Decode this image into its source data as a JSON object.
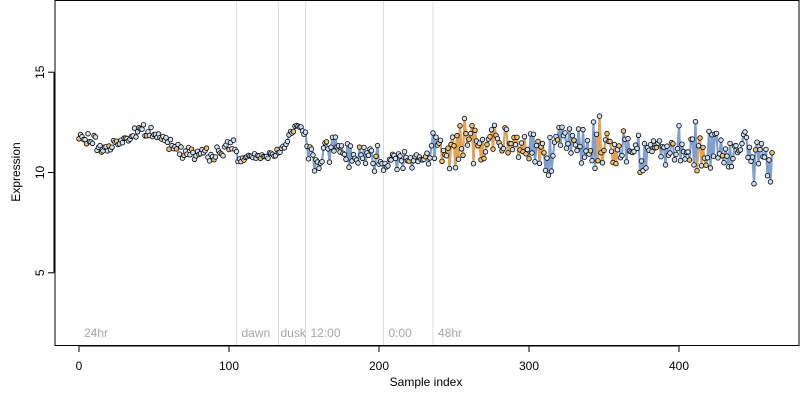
{
  "chart_data": {
    "type": "scatter",
    "xlabel": "Sample index",
    "ylabel": "Expression",
    "xlim": [
      -16,
      480
    ],
    "ylim": [
      1.4,
      18.6
    ],
    "x_ticks": [
      0,
      100,
      200,
      300,
      400
    ],
    "x_tick_labels": [
      "0",
      "100",
      "200",
      "300",
      "400"
    ],
    "y_ticks": [
      5,
      10,
      15
    ],
    "y_tick_labels": [
      "5",
      "10",
      "15"
    ],
    "grid": false,
    "phase_boundaries": [
      105,
      133,
      151,
      203,
      236
    ],
    "phase_labels": [
      {
        "x": 2,
        "text": "24hr"
      },
      {
        "x": 107,
        "text": "dawn"
      },
      {
        "x": 133,
        "text": "dusk"
      },
      {
        "x": 153,
        "text": "12:00"
      },
      {
        "x": 205,
        "text": "0:00"
      },
      {
        "x": 238,
        "text": "48hr"
      }
    ],
    "colors": {
      "trend_line": "#7f9fd0",
      "highlight_line": "#f2a23c",
      "point_highlight_fill": "#f5c26b",
      "point_fill": "#cfe0f2",
      "point_stroke": "#000000",
      "phase_line": "#dddddd",
      "phase_label": "#a6a6a6"
    },
    "highlight_ranges": [
      [
        240,
        300
      ],
      [
        305,
        310
      ],
      [
        345,
        360
      ],
      [
        412,
        418
      ]
    ],
    "anchors": [
      [
        0,
        11.7
      ],
      [
        10,
        11.6
      ],
      [
        15,
        11.1
      ],
      [
        25,
        11.5
      ],
      [
        35,
        11.8
      ],
      [
        42,
        12.1
      ],
      [
        50,
        11.9
      ],
      [
        60,
        11.5
      ],
      [
        70,
        11.1
      ],
      [
        80,
        10.9
      ],
      [
        88,
        10.8
      ],
      [
        95,
        11.1
      ],
      [
        100,
        11.3
      ],
      [
        104,
        11.4
      ],
      [
        106,
        10.6
      ],
      [
        110,
        10.7
      ],
      [
        120,
        10.8
      ],
      [
        130,
        10.9
      ],
      [
        135,
        11.2
      ],
      [
        140,
        11.9
      ],
      [
        145,
        12.2
      ],
      [
        148,
        12.3
      ],
      [
        152,
        11.3
      ],
      [
        155,
        10.8
      ],
      [
        158,
        10.6
      ],
      [
        165,
        11.2
      ],
      [
        170,
        11.3
      ],
      [
        175,
        11.2
      ],
      [
        180,
        11.0
      ],
      [
        190,
        10.9
      ],
      [
        200,
        10.6
      ],
      [
        210,
        10.7
      ],
      [
        220,
        10.8
      ],
      [
        230,
        10.6
      ],
      [
        238,
        11.0
      ],
      [
        250,
        11.4
      ],
      [
        260,
        11.5
      ],
      [
        270,
        11.6
      ],
      [
        280,
        11.5
      ],
      [
        290,
        11.2
      ],
      [
        300,
        11.2
      ],
      [
        320,
        11.3
      ],
      [
        340,
        11.4
      ],
      [
        360,
        11.3
      ],
      [
        380,
        11.2
      ],
      [
        400,
        10.9
      ],
      [
        420,
        11.1
      ],
      [
        440,
        10.9
      ],
      [
        462,
        10.6
      ]
    ],
    "noise_segments": [
      {
        "from": 0,
        "to": 105,
        "amp": 0.15
      },
      {
        "from": 105,
        "to": 133,
        "amp": 0.08
      },
      {
        "from": 133,
        "to": 151,
        "amp": 0.12
      },
      {
        "from": 151,
        "to": 203,
        "amp": 0.35
      },
      {
        "from": 203,
        "to": 236,
        "amp": 0.25
      },
      {
        "from": 236,
        "to": 300,
        "amp": 0.55
      },
      {
        "from": 300,
        "to": 463,
        "amp": 0.55
      }
    ],
    "n_points": 463,
    "seed": 7
  }
}
